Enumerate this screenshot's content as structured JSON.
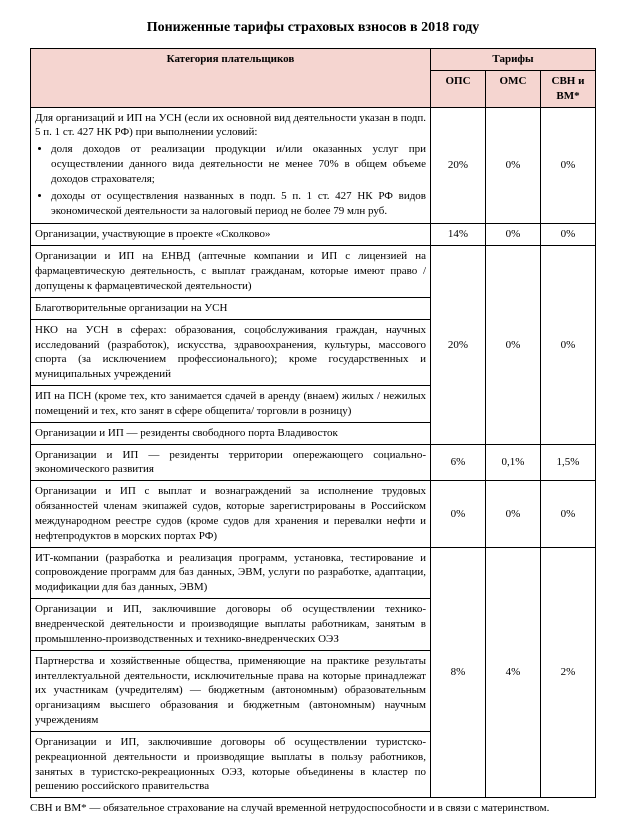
{
  "title": "Пониженные тарифы страховых взносов в 2018 году",
  "header": {
    "category": "Категория плательщиков",
    "tariffs": "Тарифы",
    "ops": "ОПС",
    "oms": "ОМС",
    "sbn": "СВН и ВМ*"
  },
  "rows": {
    "r1": {
      "text_intro": "Для организаций и ИП на УСН (если их основной вид деятельности указан в подп. 5 п. 1 ст. 427 НК РФ) при выполнении условий:",
      "bullet1": "доля доходов от реализации продукции и/или оказанных услуг при осуществлении данного вида деятельности не менее 70% в общем объеме доходов страхователя;",
      "bullet2": "доходы от осуществления названных в подп. 5 п. 1 ст. 427 НК РФ видов экономической деятельности за налоговый период не более 79 млн руб.",
      "ops": "20%",
      "oms": "0%",
      "sbn": "0%"
    },
    "r2": {
      "text": "Организации, участвующие в проекте «Сколково»",
      "ops": "14%",
      "oms": "0%",
      "sbn": "0%"
    },
    "r3": {
      "text": "Организации и ИП на ЕНВД (аптечные компании и ИП с лицензией на фармацевтическую деятельность, с выплат гражданам, которые имеют право / допущены к фармацевтической деятельности)"
    },
    "r4": {
      "text": "Благотворительные организации на УСН"
    },
    "r5": {
      "text": "НКО на УСН в сферах: образования, соцобслуживания граждан, научных исследований (разработок), искусства, здравоохранения, культуры, массового спорта (за исключением профессионального); кроме государственных и муниципальных учреждений",
      "ops": "20%",
      "oms": "0%",
      "sbn": "0%"
    },
    "r6": {
      "text": "ИП на ПСН (кроме тех, кто занимается сдачей в аренду (внаем) жилых / нежилых помещений и тех, кто занят в сфере общепита/ торговли в розницу)"
    },
    "r7": {
      "text": "Организации и ИП — резиденты свободного порта Владивосток"
    },
    "r8": {
      "text": "Организации и ИП — резиденты территории опережающего социально-экономического развития",
      "ops": "6%",
      "oms": "0,1%",
      "sbn": "1,5%"
    },
    "r9": {
      "text": "Организации и ИП с выплат и вознаграждений за исполнение трудовых обязанностей членам экипажей судов, которые зарегистрированы в Российском международном реестре судов (кроме судов для хранения и перевалки нефти и нефтепродуктов в морских портах РФ)",
      "ops": "0%",
      "oms": "0%",
      "sbn": "0%"
    },
    "r10": {
      "text": "ИТ-компании (разработка и реализация программ, установка, тестирование и сопровождение программ для баз данных, ЭВМ, услуги по разработке, адаптации, модификации для баз данных, ЭВМ)"
    },
    "r11": {
      "text": "Организации и ИП, заключившие договоры об осуществлении технико-внедренческой деятельности и производящие выплаты работникам, занятым в промышленно-производственных и технико-внедренческих ОЭЗ"
    },
    "r12": {
      "text": "Партнерства и хозяйственные общества, применяющие на практике результаты интеллектуальной деятельности, исключительные права на которые принадлежат их участникам (учредителям) — бюджетным (автономным) образовательным организациям высшего образования и бюджетным (автономным) научным учреждениям",
      "ops": "8%",
      "oms": "4%",
      "sbn": "2%"
    },
    "r13": {
      "text": "Организации и ИП, заключившие договоры об осуществлении туристско-рекреационной деятельности и производящие выплаты в пользу работников, занятых в туристско-рекреационных ОЭЗ, которые объединены в кластер по решению российского правительства"
    }
  },
  "footnote": "СВН и ВМ* — обязательное страхование на случай временной нетрудоспособности и в связи с материнством."
}
